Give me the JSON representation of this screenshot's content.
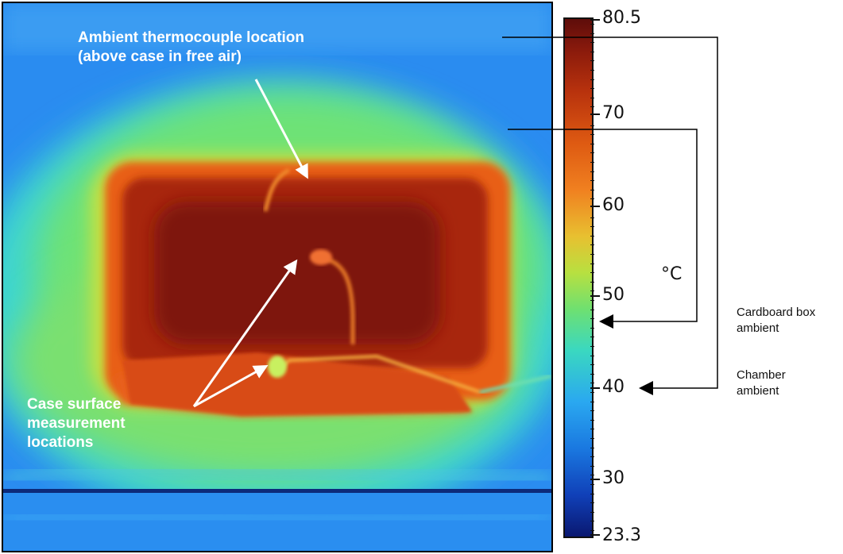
{
  "annotations": {
    "ambient_tc_line1": "Ambient thermocouple location",
    "ambient_tc_line2": "(above case in free air)",
    "case_surface_line1": "Case surface",
    "case_surface_line2": "measurement",
    "case_surface_line3": "locations"
  },
  "scale": {
    "max": "80.5",
    "min": "23.3",
    "ticks": [
      "70",
      "60",
      "50",
      "40",
      "30"
    ],
    "unit": "°C"
  },
  "legend": {
    "cardboard_line1": "Cardboard box",
    "cardboard_line2": "ambient",
    "chamber_line1": "Chamber",
    "chamber_line2": "ambient"
  },
  "colors": {
    "hot": "#a8260c",
    "background": "#2a8cf0",
    "warm_air": "#70e070"
  }
}
